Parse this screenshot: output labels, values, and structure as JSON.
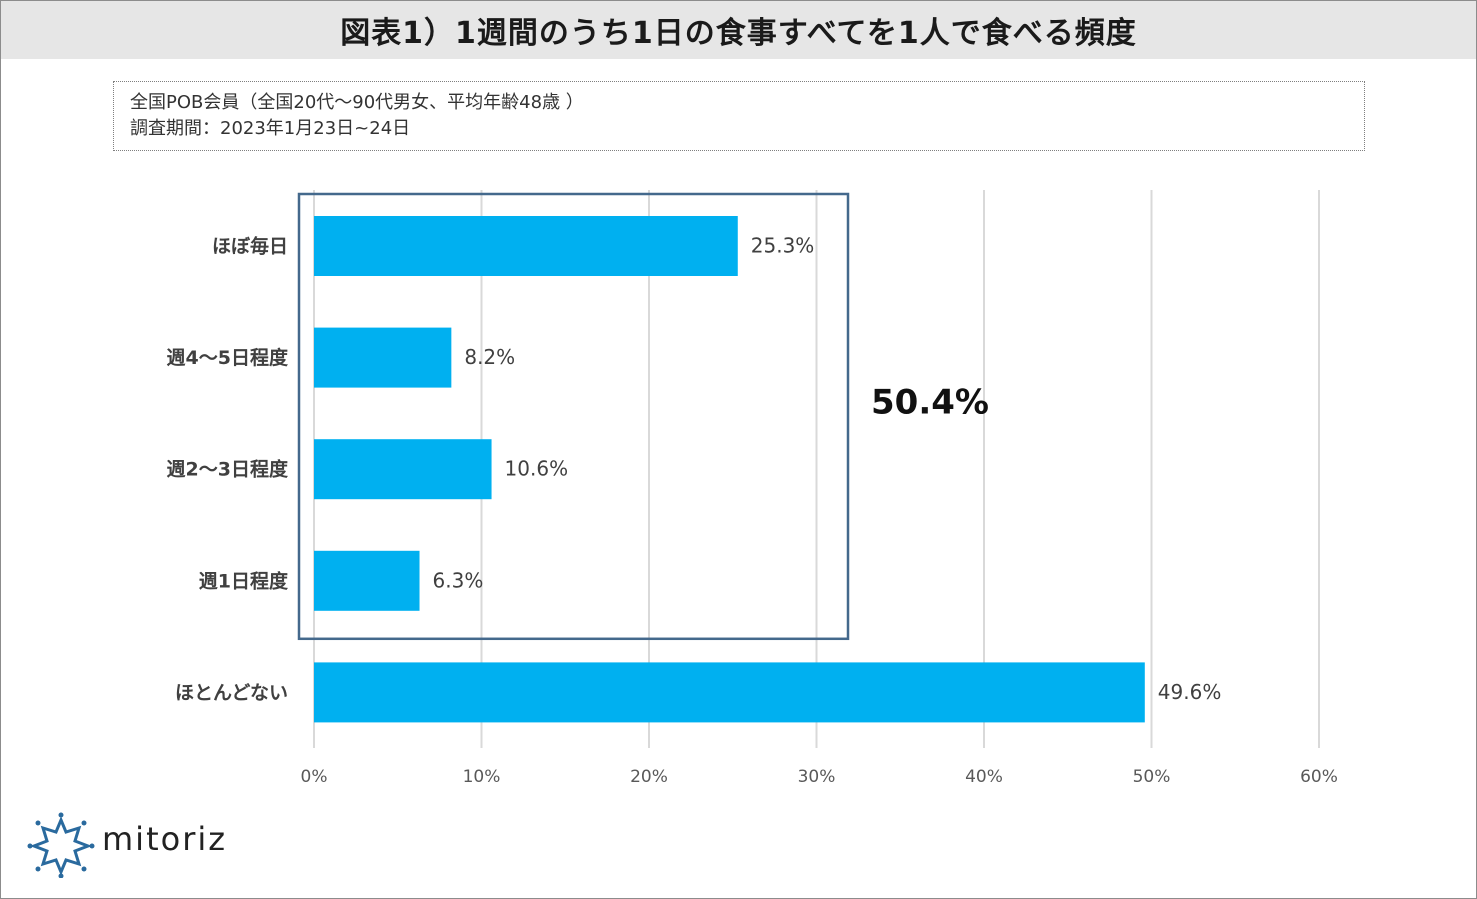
{
  "header": {
    "title": "図表1）1週間のうち1日の食事すべてを1人で食べる頻度"
  },
  "info": {
    "line1": "全国POB会員（全国20代～90代男女、平均年齢48歳 ）",
    "line2": "調査期間：2023年1月23日~24日"
  },
  "brand": {
    "name": "mitoriz",
    "color": "#2a6a9e"
  },
  "colors": {
    "bar": "#00b0f0",
    "box": "#44698c",
    "grid": "#d9d9d9"
  },
  "chart_data": {
    "type": "bar",
    "orientation": "horizontal",
    "title": "図表1）1週間のうち1日の食事すべてを1人で食べる頻度",
    "categories": [
      "ほぼ毎日",
      "週4～5日程度",
      "週2～3日程度",
      "週1日程度",
      "ほとんどない"
    ],
    "values": [
      25.3,
      8.2,
      10.6,
      6.3,
      49.6
    ],
    "value_labels": [
      "25.3%",
      "8.2%",
      "10.6%",
      "6.3%",
      "49.6%"
    ],
    "xlim": [
      0,
      60
    ],
    "xticks": [
      0,
      10,
      20,
      30,
      40,
      50,
      60
    ],
    "xtick_labels": [
      "0%",
      "10%",
      "20%",
      "30%",
      "40%",
      "50%",
      "60%"
    ],
    "grid": true,
    "highlight": {
      "categories": [
        "ほぼ毎日",
        "週4～5日程度",
        "週2～3日程度",
        "週1日程度"
      ],
      "label": "50.4%"
    }
  }
}
